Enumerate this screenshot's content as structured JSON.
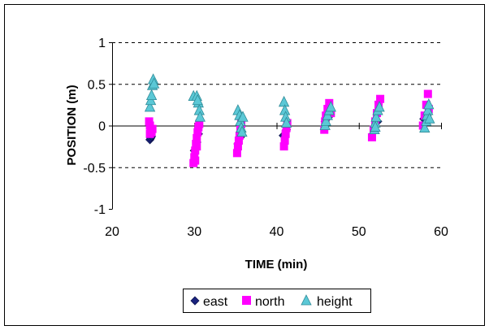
{
  "chart_data": {
    "type": "scatter",
    "xlabel": "TIME (min)",
    "ylabel": "POSITION (m)",
    "xlim": [
      20,
      60
    ],
    "ylim": [
      -1,
      1
    ],
    "x_ticks": [
      20,
      30,
      40,
      50,
      60
    ],
    "y_ticks": [
      -1,
      -0.5,
      0,
      0.5,
      1
    ],
    "x_tick_labels": [
      "20",
      "30",
      "40",
      "50",
      "60"
    ],
    "y_tick_labels": [
      "-1",
      "-0.5",
      "0",
      "0.5",
      "1"
    ],
    "grid": {
      "y_major": true,
      "style": "dashed"
    },
    "legend_position": "bottom",
    "series": [
      {
        "name": "east",
        "marker": "diamond",
        "color": "#1a237e",
        "points": [
          [
            24.6,
            -0.17
          ],
          [
            24.7,
            -0.15
          ],
          [
            24.8,
            -0.13
          ],
          [
            30.0,
            -0.3
          ],
          [
            30.3,
            -0.2
          ],
          [
            30.5,
            -0.1
          ],
          [
            35.3,
            -0.22
          ],
          [
            35.6,
            -0.14
          ],
          [
            40.8,
            -0.12
          ],
          [
            41.2,
            -0.05
          ],
          [
            45.9,
            0.05
          ],
          [
            46.3,
            0.1
          ],
          [
            51.9,
            -0.05
          ],
          [
            52.3,
            0.05
          ],
          [
            57.9,
            0.08
          ],
          [
            58.3,
            0.12
          ]
        ]
      },
      {
        "name": "north",
        "marker": "square",
        "color": "#ff00ff",
        "points": [
          [
            24.5,
            0.05
          ],
          [
            24.6,
            0.0
          ],
          [
            24.7,
            -0.05
          ],
          [
            24.8,
            -0.08
          ],
          [
            24.9,
            -0.04
          ],
          [
            24.6,
            -0.1
          ],
          [
            29.9,
            -0.45
          ],
          [
            30.0,
            -0.38
          ],
          [
            30.1,
            -0.3
          ],
          [
            30.2,
            -0.22
          ],
          [
            30.3,
            -0.15
          ],
          [
            30.4,
            -0.08
          ],
          [
            30.5,
            -0.02
          ],
          [
            30.6,
            0.02
          ],
          [
            30.1,
            -0.42
          ],
          [
            30.3,
            -0.25
          ],
          [
            35.2,
            -0.33
          ],
          [
            35.3,
            -0.25
          ],
          [
            35.4,
            -0.18
          ],
          [
            35.5,
            -0.12
          ],
          [
            35.6,
            -0.05
          ],
          [
            35.7,
            0.02
          ],
          [
            40.9,
            -0.25
          ],
          [
            41.0,
            -0.18
          ],
          [
            41.1,
            -0.1
          ],
          [
            41.2,
            -0.03
          ],
          [
            41.3,
            0.03
          ],
          [
            45.8,
            -0.05
          ],
          [
            45.9,
            0.05
          ],
          [
            46.0,
            0.12
          ],
          [
            46.2,
            0.2
          ],
          [
            46.4,
            0.27
          ],
          [
            46.6,
            0.15
          ],
          [
            51.6,
            -0.14
          ],
          [
            51.8,
            -0.05
          ],
          [
            52.0,
            0.05
          ],
          [
            52.2,
            0.15
          ],
          [
            52.4,
            0.25
          ],
          [
            52.6,
            0.32
          ],
          [
            57.8,
            0.0
          ],
          [
            58.0,
            0.12
          ],
          [
            58.2,
            0.25
          ],
          [
            58.4,
            0.38
          ],
          [
            58.5,
            0.2
          ]
        ]
      },
      {
        "name": "height",
        "marker": "triangle",
        "color": "#5bc8d6",
        "points": [
          [
            24.6,
            0.22
          ],
          [
            24.7,
            0.3
          ],
          [
            24.8,
            0.36
          ],
          [
            24.9,
            0.48
          ],
          [
            25.0,
            0.55
          ],
          [
            25.1,
            0.5
          ],
          [
            29.9,
            0.35
          ],
          [
            30.3,
            0.35
          ],
          [
            30.5,
            0.27
          ],
          [
            30.6,
            0.18
          ],
          [
            30.7,
            0.1
          ],
          [
            30.4,
            0.3
          ],
          [
            35.3,
            0.18
          ],
          [
            35.5,
            0.12
          ],
          [
            35.6,
            0.05
          ],
          [
            35.7,
            -0.03
          ],
          [
            35.8,
            -0.08
          ],
          [
            35.9,
            0.1
          ],
          [
            40.9,
            0.28
          ],
          [
            41.0,
            0.18
          ],
          [
            41.1,
            0.1
          ],
          [
            41.2,
            0.03
          ],
          [
            45.9,
            0.0
          ],
          [
            46.0,
            0.05
          ],
          [
            46.2,
            0.12
          ],
          [
            46.4,
            0.18
          ],
          [
            46.6,
            0.22
          ],
          [
            51.9,
            -0.05
          ],
          [
            52.0,
            0.03
          ],
          [
            52.1,
            0.1
          ],
          [
            52.3,
            0.18
          ],
          [
            52.5,
            0.22
          ],
          [
            52.0,
            -0.02
          ],
          [
            58.0,
            -0.03
          ],
          [
            58.2,
            0.05
          ],
          [
            58.3,
            0.12
          ],
          [
            58.4,
            0.18
          ],
          [
            58.5,
            0.25
          ],
          [
            58.6,
            0.08
          ]
        ]
      }
    ]
  }
}
